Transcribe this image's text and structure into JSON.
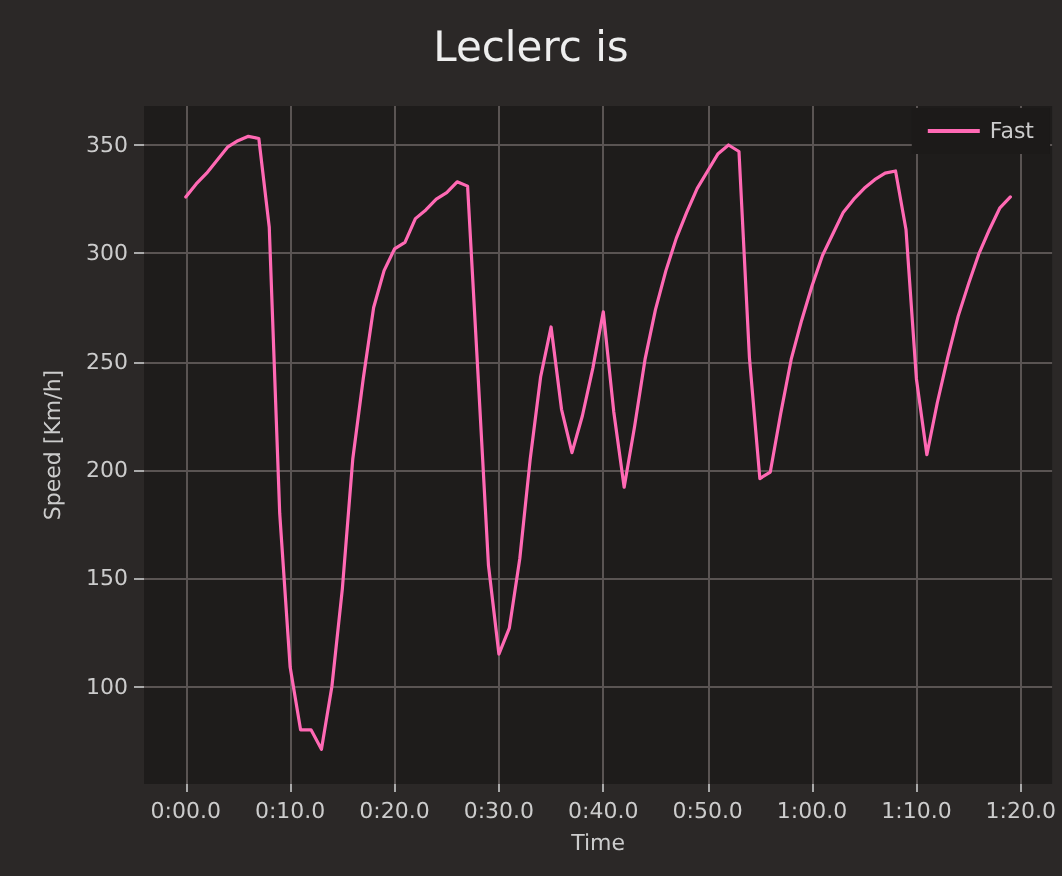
{
  "chart_data": {
    "type": "line",
    "title": "Leclerc is",
    "xlabel": "Time",
    "ylabel": "Speed [Km/h]",
    "categories": [
      null,
      null,
      null,
      null,
      "0:00.0",
      null,
      null,
      null,
      null,
      null,
      null,
      null,
      null,
      null,
      "0:10.0",
      null,
      null,
      null,
      null,
      null,
      null,
      null,
      null,
      null,
      "0:20.0",
      null,
      null,
      null,
      null,
      null,
      null,
      null,
      null,
      null,
      "0:30.0",
      null,
      null,
      null,
      null,
      null,
      null,
      null,
      null,
      null,
      "0:40.0",
      null,
      null,
      null,
      null,
      null,
      null,
      null,
      null,
      null,
      "0:50.0",
      null,
      null,
      null,
      null,
      null,
      null,
      null,
      null,
      null,
      "1:00.0",
      null,
      null,
      null,
      null,
      null,
      null,
      null,
      null,
      null,
      "1:10.0",
      null,
      null,
      null,
      null,
      null,
      null,
      null,
      null,
      null,
      "1:20.0",
      null,
      null,
      null
    ],
    "ylim": [
      55,
      368
    ],
    "yticks": [
      100,
      150,
      200,
      250,
      300,
      350
    ],
    "grid": true,
    "legend": "top right",
    "marker": "none",
    "line_style": "solid",
    "series": [
      {
        "name": "Fast",
        "color": "#ff69b4",
        "values": [
          null,
          null,
          null,
          null,
          326,
          332,
          337,
          343,
          349,
          352,
          354,
          353,
          312,
          180,
          109,
          80,
          80,
          71,
          100,
          145,
          205,
          242,
          275,
          292,
          302,
          305,
          316,
          320,
          325,
          328,
          333,
          331,
          244,
          156,
          115,
          127,
          159,
          205,
          243,
          266,
          228,
          208,
          225,
          247,
          273,
          227,
          192,
          220,
          251,
          274,
          292,
          307,
          319,
          330,
          338,
          346,
          350,
          347,
          252,
          196,
          199,
          226,
          251,
          269,
          285,
          299,
          309,
          319,
          325,
          330,
          334,
          337,
          338,
          311,
          242,
          207,
          231,
          252,
          271,
          286,
          300,
          311,
          321,
          326,
          null,
          null,
          null,
          null
        ]
      }
    ]
  }
}
